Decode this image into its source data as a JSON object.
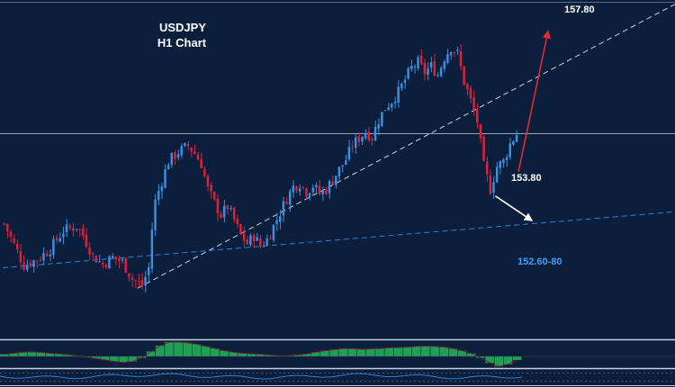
{
  "chart_data": {
    "type": "candlestick",
    "title": "USDJPY",
    "subtitle": "H1 Chart",
    "colors": {
      "background": "#0b1f3c",
      "bull": "#3d8fe0",
      "bear": "#e0203a",
      "trendline": "#c9d4e4",
      "support": "#2f7fd8",
      "resistance": "#9aa5b8",
      "arrow_up": "#e02a33",
      "arrow_down": "#ffffff",
      "level_white": "#ffffff",
      "level_blue": "#3ea0ff",
      "histogram": "#1f9e55",
      "oscillator": "#2f7fd8"
    },
    "close_path": [
      [
        0,
        155.45
      ],
      [
        3,
        154.85
      ],
      [
        6,
        154.25
      ],
      [
        10,
        154.42
      ],
      [
        14,
        154.72
      ],
      [
        18,
        155.25
      ],
      [
        22,
        155.38
      ],
      [
        24,
        155.12
      ],
      [
        27,
        154.52
      ],
      [
        30,
        154.28
      ],
      [
        33,
        154.48
      ],
      [
        36,
        154.35
      ],
      [
        39,
        153.85
      ],
      [
        42,
        153.66
      ],
      [
        44,
        154.18
      ],
      [
        45,
        155.3
      ],
      [
        46,
        156.1
      ],
      [
        47,
        156.4
      ],
      [
        50,
        157.25
      ],
      [
        53,
        157.52
      ],
      [
        56,
        157.7
      ],
      [
        58,
        157.48
      ],
      [
        60,
        157.18
      ],
      [
        62,
        156.45
      ],
      [
        64,
        156.05
      ],
      [
        66,
        155.7
      ],
      [
        68,
        155.95
      ],
      [
        70,
        155.55
      ],
      [
        72,
        155.12
      ],
      [
        74,
        154.88
      ],
      [
        76,
        155.1
      ],
      [
        78,
        154.82
      ],
      [
        80,
        155.0
      ],
      [
        82,
        155.38
      ],
      [
        84,
        155.78
      ],
      [
        86,
        156.18
      ],
      [
        88,
        156.52
      ],
      [
        90,
        156.62
      ],
      [
        92,
        156.38
      ],
      [
        94,
        156.55
      ],
      [
        96,
        156.32
      ],
      [
        98,
        156.45
      ],
      [
        100,
        156.72
      ],
      [
        102,
        157.02
      ],
      [
        104,
        157.3
      ],
      [
        106,
        157.72
      ],
      [
        108,
        157.92
      ],
      [
        110,
        158.1
      ],
      [
        112,
        157.95
      ],
      [
        114,
        158.45
      ],
      [
        116,
        158.8
      ],
      [
        118,
        159.0
      ],
      [
        120,
        159.25
      ],
      [
        122,
        159.6
      ],
      [
        124,
        159.95
      ],
      [
        126,
        160.1
      ],
      [
        128,
        159.82
      ],
      [
        130,
        160.0
      ],
      [
        132,
        159.75
      ],
      [
        134,
        160.25
      ],
      [
        136,
        160.55
      ],
      [
        138,
        160.35
      ],
      [
        140,
        159.55
      ],
      [
        142,
        159.0
      ],
      [
        144,
        158.4
      ],
      [
        146,
        157.1
      ],
      [
        148,
        156.45
      ],
      [
        150,
        157.1
      ],
      [
        152,
        157.25
      ],
      [
        154,
        157.75
      ],
      [
        156,
        158.05
      ]
    ],
    "bars_count": 157,
    "price_range": [
      152.35,
      161.7
    ],
    "hlines": [
      {
        "name": "resistance",
        "price": 158.05,
        "style": "solid"
      }
    ],
    "trendlines": [
      {
        "name": "rising-support",
        "x1": 41,
        "y1": 153.59,
        "x2": 157,
        "y2": 159.4,
        "extend": true,
        "dash": true
      },
      {
        "name": "lower-channel",
        "x1": 0,
        "y1": 154.18,
        "x2": 157,
        "y2": 155.42,
        "extend": true,
        "dash": true,
        "color": "support"
      }
    ],
    "annotations": [
      {
        "text": "157.80",
        "arrow": "up",
        "arrow_from": [
          157,
          156.95
        ],
        "arrow_to": [
          166,
          161.0
        ],
        "color": "level_white"
      },
      {
        "text": "153.80",
        "arrow": "down",
        "arrow_from": [
          150,
          156.25
        ],
        "arrow_to": [
          161,
          155.55
        ],
        "color": "level_white"
      },
      {
        "text": "152.60-80",
        "color": "level_blue"
      }
    ],
    "indicator_histogram": [
      0.15,
      0.22,
      0.3,
      0.32,
      0.28,
      0.22,
      0.18,
      0.12,
      0.05,
      -0.05,
      -0.15,
      -0.25,
      -0.35,
      -0.42,
      -0.35,
      -0.1,
      0.35,
      0.75,
      1.0,
      1.0,
      0.95,
      0.85,
      0.7,
      0.55,
      0.4,
      0.3,
      0.22,
      0.18,
      0.15,
      0.1,
      0.05,
      0.05,
      0.1,
      0.18,
      0.3,
      0.4,
      0.48,
      0.55,
      0.55,
      0.5,
      0.52,
      0.55,
      0.6,
      0.62,
      0.65,
      0.7,
      0.72,
      0.7,
      0.65,
      0.55,
      0.4,
      0.2,
      -0.1,
      -0.45,
      -0.7,
      -0.55,
      -0.25
    ],
    "grid": false,
    "legend": "none"
  }
}
